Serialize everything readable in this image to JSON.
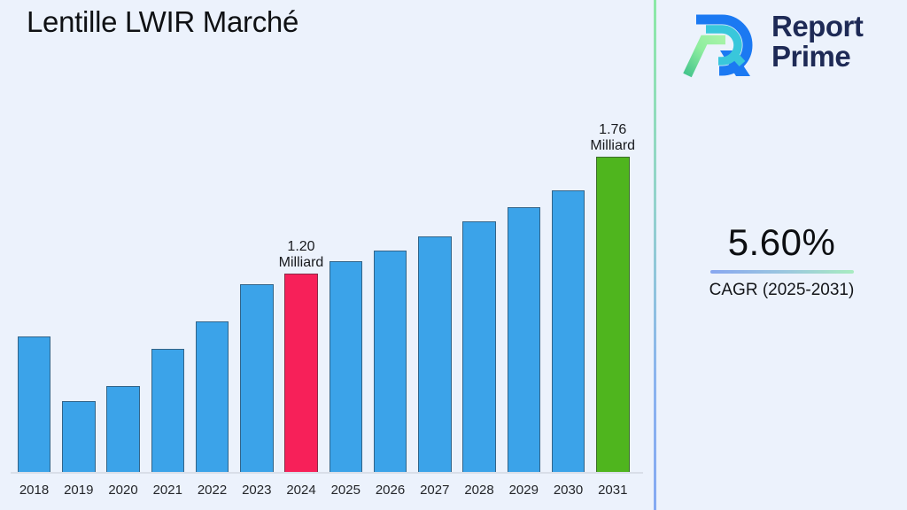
{
  "page": {
    "background": "#ecf2fc"
  },
  "header": {
    "title": "Lentille LWIR Marché"
  },
  "logo": {
    "line1": "Report",
    "line2": "Prime",
    "text_color": "#1e2a56"
  },
  "cagr": {
    "value": "5.60%",
    "label": "CAGR (2025-2031)"
  },
  "chart_data": {
    "type": "bar",
    "title": "Lentille LWIR Marché",
    "unit": "Milliard",
    "categories": [
      "2018",
      "2019",
      "2020",
      "2021",
      "2022",
      "2023",
      "2024",
      "2025",
      "2026",
      "2027",
      "2028",
      "2029",
      "2030",
      "2031"
    ],
    "values": [
      0.9,
      0.59,
      0.66,
      0.84,
      0.97,
      1.15,
      1.2,
      1.26,
      1.31,
      1.38,
      1.45,
      1.52,
      1.6,
      1.76
    ],
    "labeled_points": [
      {
        "category": "2024",
        "label_lines": [
          "1.20",
          "Milliard"
        ]
      },
      {
        "category": "2031",
        "label_lines": [
          "1.76",
          "Milliard"
        ]
      }
    ],
    "colors": {
      "default_bar": "#3ba3e9",
      "highlight_current": "#f72059",
      "highlight_final": "#4fb51e",
      "bar_border": "rgba(45,50,56,0.55)",
      "axis_line": "#d9dee8"
    },
    "highlight_map": {
      "2024": "highlight_current",
      "2031": "highlight_final"
    },
    "y_axis": {
      "visible": false,
      "baseline_value": 0.25,
      "max_value": 1.76
    },
    "x_axis": {
      "labels_visible": true
    },
    "grid": false,
    "legend": "none"
  }
}
